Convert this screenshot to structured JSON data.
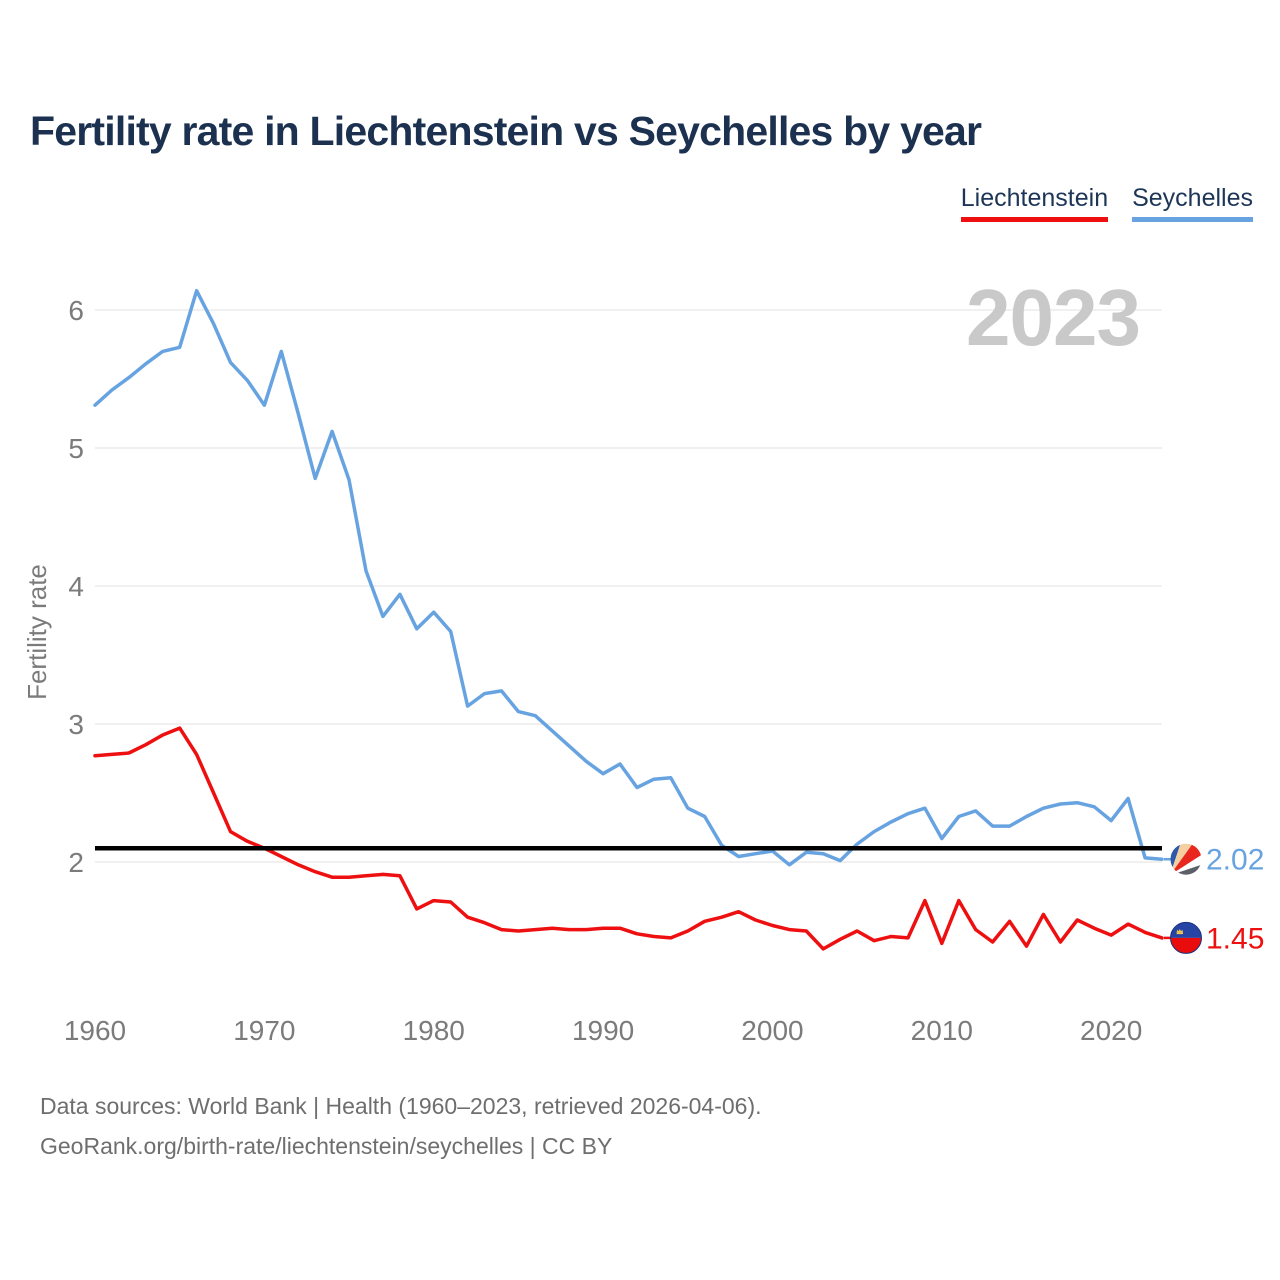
{
  "header": {
    "title": "Fertility rate in Liechtenstein vs Seychelles by year"
  },
  "footer": {
    "line1": "Data sources: World Bank | Health (1960–2023, retrieved 2026-04-06).",
    "line2": "GeoRank.org/birth-rate/liechtenstein/seychelles | CC BY"
  },
  "chart_data": {
    "type": "line",
    "title": "Fertility rate in Liechtenstein vs Seychelles by year",
    "xlabel": "",
    "ylabel": "Fertility rate",
    "watermark": "2023",
    "grid": true,
    "legend_position": "top-right",
    "xlim": [
      1960,
      2023
    ],
    "ylim": [
      1.2,
      6.35
    ],
    "x_ticks": [
      1960,
      1970,
      1980,
      1990,
      2000,
      2010,
      2020
    ],
    "y_ticks": [
      2,
      3,
      4,
      5,
      6
    ],
    "reference_line": {
      "value": 2.1,
      "color": "#000000"
    },
    "x": [
      1960,
      1961,
      1962,
      1963,
      1964,
      1965,
      1966,
      1967,
      1968,
      1969,
      1970,
      1971,
      1972,
      1973,
      1974,
      1975,
      1976,
      1977,
      1978,
      1979,
      1980,
      1981,
      1982,
      1983,
      1984,
      1985,
      1986,
      1987,
      1988,
      1989,
      1990,
      1991,
      1992,
      1993,
      1994,
      1995,
      1996,
      1997,
      1998,
      1999,
      2000,
      2001,
      2002,
      2003,
      2004,
      2005,
      2006,
      2007,
      2008,
      2009,
      2010,
      2011,
      2012,
      2013,
      2014,
      2015,
      2016,
      2017,
      2018,
      2019,
      2020,
      2021,
      2022,
      2023
    ],
    "series": [
      {
        "name": "Liechtenstein",
        "color": "#ee1010",
        "end_label": "1.45",
        "flag_icon": "liechtenstein-flag-icon",
        "values": [
          2.77,
          2.78,
          2.79,
          2.85,
          2.92,
          2.97,
          2.78,
          2.5,
          2.22,
          2.15,
          2.1,
          2.04,
          1.98,
          1.93,
          1.89,
          1.89,
          1.9,
          1.91,
          1.9,
          1.66,
          1.72,
          1.71,
          1.6,
          1.56,
          1.51,
          1.5,
          1.51,
          1.52,
          1.51,
          1.51,
          1.52,
          1.52,
          1.48,
          1.46,
          1.45,
          1.5,
          1.57,
          1.6,
          1.64,
          1.58,
          1.54,
          1.51,
          1.5,
          1.37,
          1.44,
          1.5,
          1.43,
          1.46,
          1.45,
          1.72,
          1.41,
          1.72,
          1.51,
          1.42,
          1.57,
          1.39,
          1.62,
          1.42,
          1.58,
          1.52,
          1.47,
          1.55,
          1.49,
          1.45
        ]
      },
      {
        "name": "Seychelles",
        "color": "#68a3e1",
        "end_label": "2.02",
        "flag_icon": "seychelles-flag-icon",
        "values": [
          5.31,
          5.42,
          5.51,
          5.61,
          5.7,
          5.73,
          6.14,
          5.9,
          5.62,
          5.49,
          5.31,
          5.7,
          5.25,
          4.78,
          5.12,
          4.77,
          4.11,
          3.78,
          3.94,
          3.69,
          3.81,
          3.67,
          3.13,
          3.22,
          3.24,
          3.09,
          3.06,
          2.95,
          2.84,
          2.73,
          2.64,
          2.71,
          2.54,
          2.6,
          2.61,
          2.39,
          2.33,
          2.12,
          2.04,
          2.06,
          2.08,
          1.98,
          2.07,
          2.06,
          2.01,
          2.13,
          2.22,
          2.29,
          2.35,
          2.39,
          2.17,
          2.33,
          2.37,
          2.26,
          2.26,
          2.33,
          2.39,
          2.42,
          2.43,
          2.4,
          2.3,
          2.46,
          2.03,
          2.02
        ]
      }
    ]
  }
}
